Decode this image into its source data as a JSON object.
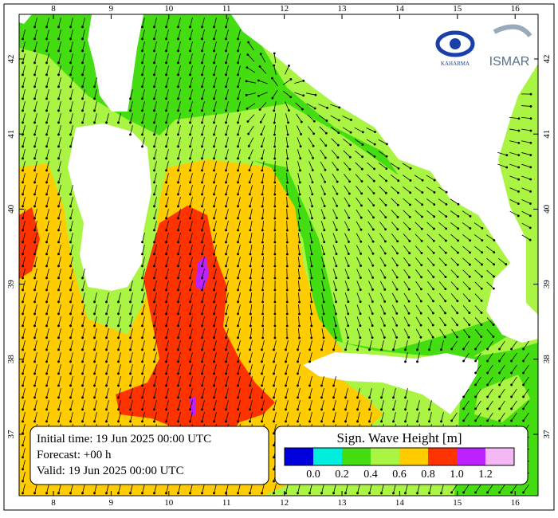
{
  "map": {
    "lon_ticks": [
      8,
      9,
      10,
      11,
      12,
      13,
      14,
      15,
      16
    ],
    "lat_ticks": [
      37,
      38,
      39,
      40,
      41,
      42
    ]
  },
  "info": {
    "initial_time": "Initial time: 19 Jun 2025 00:00 UTC",
    "forecast": "Forecast: +00 h",
    "valid": "Valid: 19 Jun 2025 00:00 UTC"
  },
  "legend": {
    "title": "Sign. Wave Height [m]",
    "colors": [
      "#0000dd",
      "#00eedd",
      "#44dd11",
      "#aaf444",
      "#ffcc00",
      "#ff3300",
      "#bb22ff",
      "#f4b8f4"
    ],
    "ticks": [
      {
        "value": 0,
        "label": "0.0"
      },
      {
        "value": 0.2,
        "label": "0.2"
      },
      {
        "value": 0.4,
        "label": "0.4"
      },
      {
        "value": 0.6,
        "label": "0.6"
      },
      {
        "value": 0.8,
        "label": "0.8"
      },
      {
        "value": 1.0,
        "label": "1.0"
      },
      {
        "value": 1.2,
        "label": "1.2"
      }
    ]
  },
  "logos": {
    "left": "KAHARMA",
    "right": "ISMAR"
  }
}
